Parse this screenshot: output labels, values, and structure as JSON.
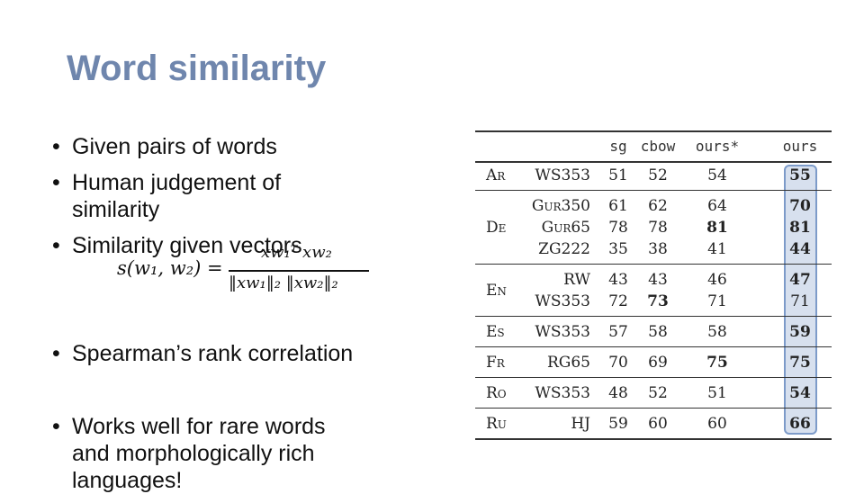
{
  "slide": {
    "title": "Word similarity",
    "bullets": [
      {
        "lines": [
          "Given pairs of words"
        ]
      },
      {
        "lines": [
          "Human judgement of",
          "similarity"
        ]
      },
      {
        "lines": [
          "Similarity given vectors"
        ]
      },
      {
        "lines": [
          "Spearman’s rank correlation"
        ]
      },
      {
        "lines": [
          "Works well for rare words",
          "and morphologically rich",
          "languages!"
        ]
      }
    ],
    "formula": {
      "lhs": "s(w₁, w₂) =",
      "numerator": "xw₁ᵀ xw₂",
      "denominator": "‖xw₁‖₂ ‖xw₂‖₂"
    }
  },
  "table": {
    "headers": [
      "sg",
      "cbow",
      "ours*",
      "ours"
    ],
    "highlight_color": "#d7e0ee",
    "groups": [
      {
        "lang": "Ar",
        "rows": [
          {
            "dataset": "WS353",
            "sg": "51",
            "cbow": "52",
            "ours_star": "54",
            "ours": "55",
            "bold": [
              "ours"
            ]
          }
        ]
      },
      {
        "lang": "De",
        "rows": [
          {
            "dataset": "Gur350",
            "sg": "61",
            "cbow": "62",
            "ours_star": "64",
            "ours": "70",
            "bold": [
              "ours"
            ]
          },
          {
            "dataset": "Gur65",
            "sg": "78",
            "cbow": "78",
            "ours_star": "81",
            "ours": "81",
            "bold": [
              "ours_star",
              "ours"
            ]
          },
          {
            "dataset": "ZG222",
            "sg": "35",
            "cbow": "38",
            "ours_star": "41",
            "ours": "44",
            "bold": [
              "ours"
            ]
          }
        ]
      },
      {
        "lang": "En",
        "rows": [
          {
            "dataset": "RW",
            "sg": "43",
            "cbow": "43",
            "ours_star": "46",
            "ours": "47",
            "bold": [
              "ours"
            ]
          },
          {
            "dataset": "WS353",
            "sg": "72",
            "cbow": "73",
            "ours_star": "71",
            "ours": "71",
            "bold": [
              "cbow"
            ]
          }
        ]
      },
      {
        "lang": "Es",
        "rows": [
          {
            "dataset": "WS353",
            "sg": "57",
            "cbow": "58",
            "ours_star": "58",
            "ours": "59",
            "bold": [
              "ours"
            ]
          }
        ]
      },
      {
        "lang": "Fr",
        "rows": [
          {
            "dataset": "RG65",
            "sg": "70",
            "cbow": "69",
            "ours_star": "75",
            "ours": "75",
            "bold": [
              "ours_star",
              "ours"
            ]
          }
        ]
      },
      {
        "lang": "Ro",
        "rows": [
          {
            "dataset": "WS353",
            "sg": "48",
            "cbow": "52",
            "ours_star": "51",
            "ours": "54",
            "bold": [
              "ours"
            ]
          }
        ]
      },
      {
        "lang": "Ru",
        "rows": [
          {
            "dataset": "HJ",
            "sg": "59",
            "cbow": "60",
            "ours_star": "60",
            "ours": "66",
            "bold": [
              "ours"
            ]
          }
        ]
      }
    ]
  }
}
